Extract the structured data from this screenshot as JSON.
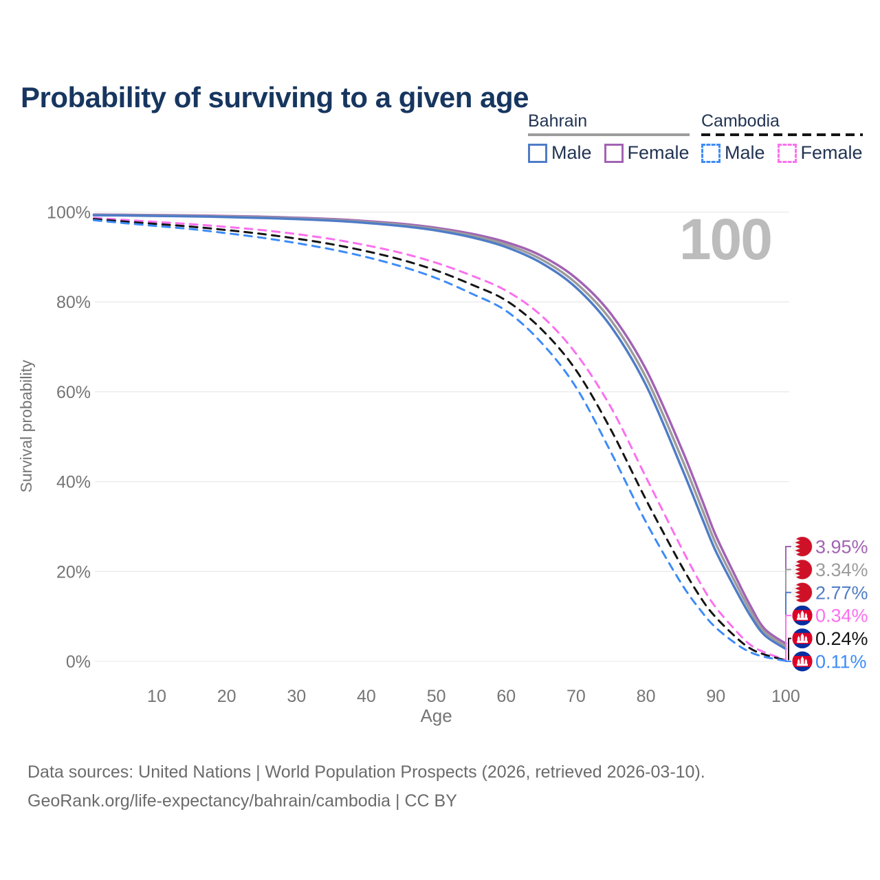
{
  "title": "Probability of surviving to a given age",
  "age_indicator": "100",
  "legend": {
    "groups": [
      {
        "name": "Bahrain",
        "line_style": "solid",
        "underline_color": "#9c9c9c",
        "items": [
          {
            "label": "Male",
            "color": "#4f7cc7"
          },
          {
            "label": "Female",
            "color": "#a263b3"
          }
        ]
      },
      {
        "name": "Cambodia",
        "line_style": "dashed",
        "underline_color": "#141414",
        "items": [
          {
            "label": "Male",
            "color": "#3d8bf8"
          },
          {
            "label": "Female",
            "color": "#fb70ee"
          }
        ]
      }
    ]
  },
  "chart_data": {
    "type": "line",
    "title": "Probability of surviving to a given age",
    "xlabel": "Age",
    "ylabel": "Survival probability",
    "x_ticks": [
      10,
      20,
      30,
      40,
      50,
      60,
      70,
      80,
      90,
      100
    ],
    "y_ticks_pct": [
      0,
      20,
      40,
      60,
      80,
      100
    ],
    "xlim": [
      1,
      100
    ],
    "ylim_pct": [
      0,
      100
    ],
    "grid": "horizontal",
    "hover_age": 100,
    "ages": [
      1,
      5,
      10,
      15,
      20,
      25,
      30,
      35,
      40,
      45,
      50,
      55,
      60,
      65,
      70,
      75,
      80,
      85,
      88,
      90,
      93,
      95,
      97,
      100
    ],
    "series": [
      {
        "name": "Bahrain Female",
        "country": "Bahrain",
        "sex": "Female",
        "style": "solid",
        "color": "#a263b3",
        "values_pct": [
          99.45,
          99.4,
          99.32,
          99.25,
          99.12,
          98.97,
          98.75,
          98.45,
          98.0,
          97.4,
          96.5,
          95.2,
          93.3,
          90.3,
          85.3,
          77.3,
          65.0,
          47.7,
          36.0,
          28.0,
          18.3,
          12.2,
          7.2,
          3.95
        ]
      },
      {
        "name": "Bahrain Both",
        "country": "Bahrain",
        "sex": "Both",
        "style": "solid",
        "color": "#9c9c9c",
        "values_pct": [
          99.37,
          99.32,
          99.23,
          99.15,
          99.0,
          98.83,
          98.6,
          98.27,
          97.8,
          97.15,
          96.2,
          94.8,
          92.75,
          89.5,
          84.2,
          75.9,
          63.2,
          45.6,
          34.0,
          26.2,
          16.9,
          11.1,
          6.5,
          3.34
        ]
      },
      {
        "name": "Bahrain Male",
        "country": "Bahrain",
        "sex": "Male",
        "style": "solid",
        "color": "#4f7cc7",
        "values_pct": [
          99.3,
          99.25,
          99.15,
          99.05,
          98.9,
          98.7,
          98.45,
          98.1,
          97.6,
          96.9,
          95.9,
          94.4,
          92.2,
          88.7,
          83.2,
          74.5,
          61.5,
          43.5,
          32.0,
          24.5,
          15.5,
          10.0,
          5.8,
          2.77
        ]
      },
      {
        "name": "Cambodia Female",
        "country": "Cambodia",
        "sex": "Female",
        "style": "dashed",
        "color": "#fb70ee",
        "values_pct": [
          98.7,
          98.3,
          97.8,
          97.3,
          96.7,
          96.0,
          95.1,
          94.0,
          92.6,
          90.9,
          88.7,
          85.9,
          82.5,
          77.0,
          68.5,
          56.5,
          41.0,
          25.5,
          16.8,
          12.0,
          6.6,
          3.6,
          2.0,
          0.34
        ]
      },
      {
        "name": "Cambodia Both",
        "country": "Cambodia",
        "sex": "Both",
        "style": "dashed",
        "color": "#141414",
        "values_pct": [
          98.45,
          97.95,
          97.35,
          96.75,
          96.0,
          95.15,
          94.1,
          92.85,
          91.3,
          89.4,
          87.0,
          83.9,
          80.3,
          74.0,
          64.8,
          51.5,
          36.0,
          21.5,
          13.8,
          9.8,
          5.2,
          2.8,
          1.5,
          0.24
        ]
      },
      {
        "name": "Cambodia Male",
        "country": "Cambodia",
        "sex": "Male",
        "style": "dashed",
        "color": "#3d8bf8",
        "values_pct": [
          98.2,
          97.6,
          96.9,
          96.2,
          95.3,
          94.3,
          93.1,
          91.7,
          90.0,
          87.9,
          85.3,
          81.9,
          78.0,
          71.0,
          61.0,
          46.5,
          31.0,
          17.5,
          11.0,
          7.5,
          3.8,
          2.0,
          1.0,
          0.11
        ]
      }
    ],
    "end_labels": [
      {
        "value": "3.95%",
        "pct": 3.95,
        "color": "#a263b3",
        "flag": "bahrain",
        "series": "Bahrain Female"
      },
      {
        "value": "3.34%",
        "pct": 3.34,
        "color": "#9c9c9c",
        "flag": "bahrain",
        "series": "Bahrain Both"
      },
      {
        "value": "2.77%",
        "pct": 2.77,
        "color": "#4f7cc7",
        "flag": "bahrain",
        "series": "Bahrain Male"
      },
      {
        "value": "0.34%",
        "pct": 0.34,
        "color": "#fb70ee",
        "flag": "cambodia",
        "series": "Cambodia Female"
      },
      {
        "value": "0.24%",
        "pct": 0.24,
        "color": "#141414",
        "flag": "cambodia",
        "series": "Cambodia Both"
      },
      {
        "value": "0.11%",
        "pct": 0.11,
        "color": "#3d8bf8",
        "flag": "cambodia",
        "series": "Cambodia Male"
      }
    ],
    "flag_colors": {
      "bahrain": {
        "white": "#f7f7f7",
        "red": "#cf1127"
      },
      "cambodia": {
        "blue": "#032ea1",
        "red": "#e00025",
        "white": "#ffffff"
      }
    }
  },
  "footer": {
    "line1": "Data sources: United Nations | World Population Prospects (2026, retrieved 2026-03-10).",
    "line2": "GeoRank.org/life-expectancy/bahrain/cambodia | CC BY"
  }
}
